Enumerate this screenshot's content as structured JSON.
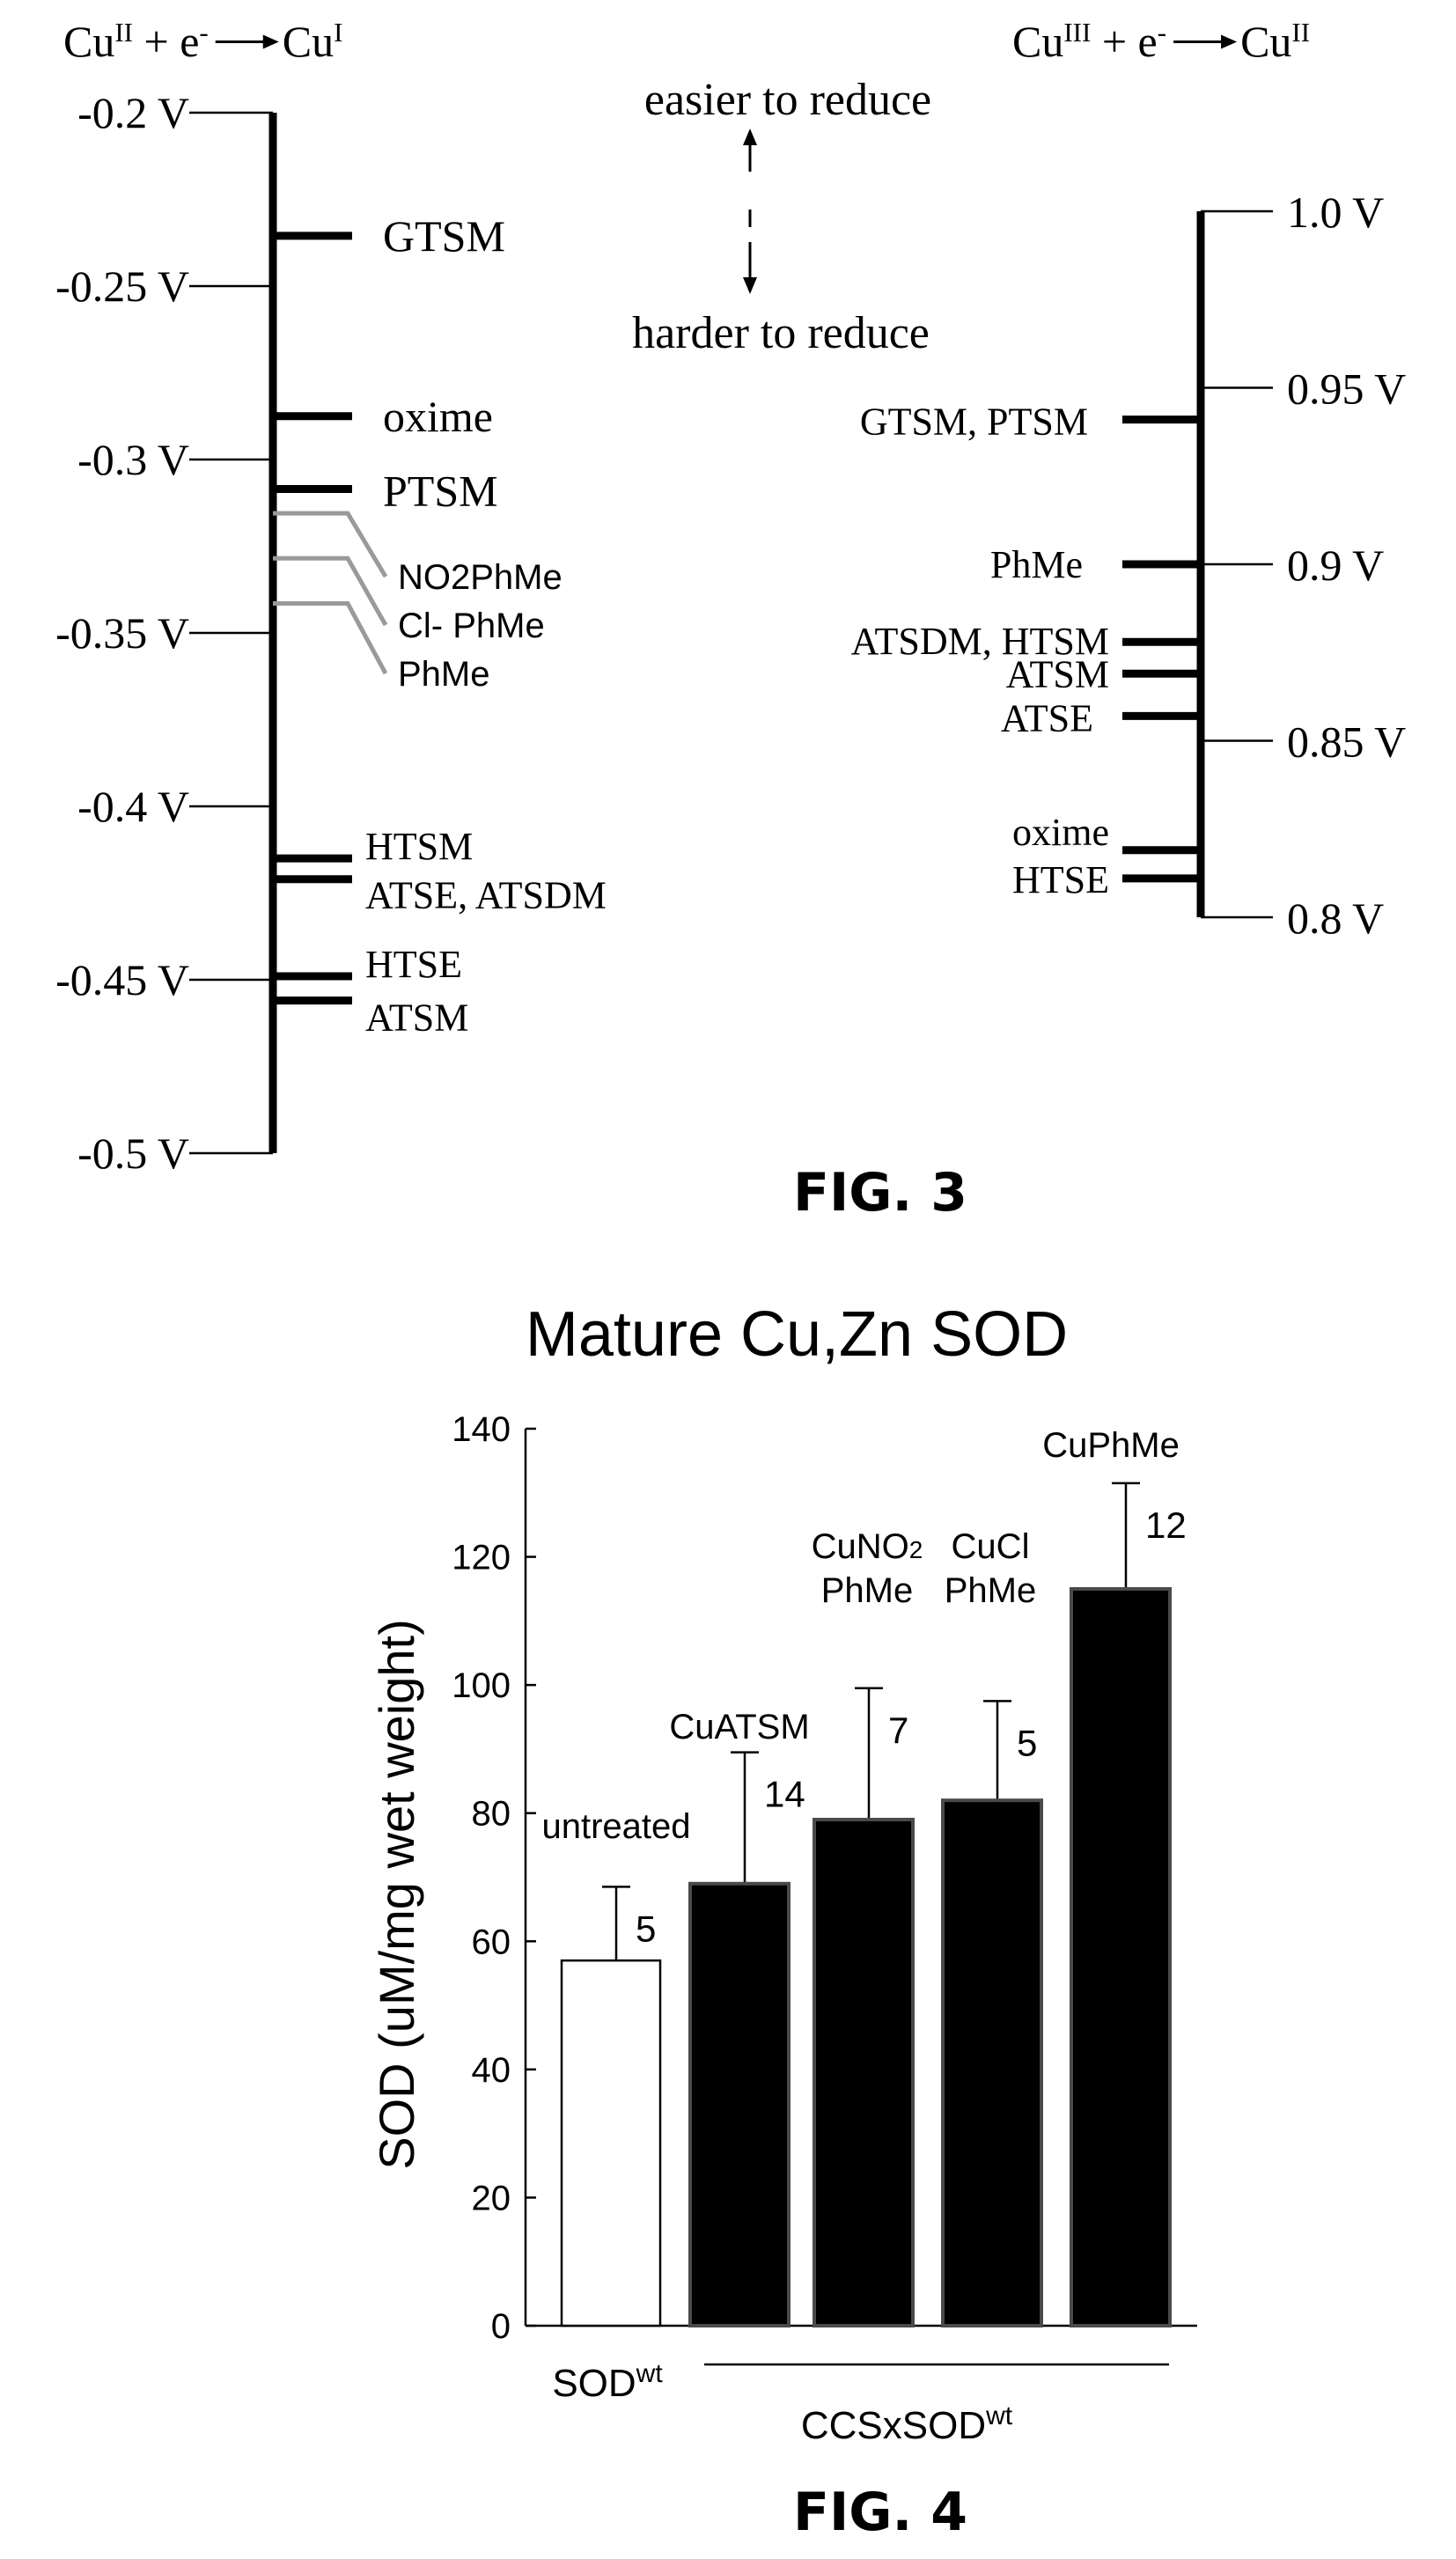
{
  "fig3": {
    "caption": "FIG. 3",
    "left_scale": {
      "reaction": {
        "base1": "Cu",
        "sup1": "II",
        "mid": " + e",
        "sup2": "-",
        "base2": "Cu",
        "sup3": "I"
      },
      "range": [
        -0.5,
        -0.2
      ],
      "ticks": [
        {
          "value": -0.2,
          "label": "-0.2 V"
        },
        {
          "value": -0.25,
          "label": "-0.25 V"
        },
        {
          "value": -0.3,
          "label": "-0.3 V"
        },
        {
          "value": -0.35,
          "label": "-0.35 V"
        },
        {
          "value": -0.4,
          "label": "-0.4 V"
        },
        {
          "value": -0.45,
          "label": "-0.45 V"
        },
        {
          "value": -0.5,
          "label": "-0.5 V"
        }
      ],
      "markers": [
        {
          "value": -0.2355,
          "label": "GTSM",
          "style": "black"
        },
        {
          "value": -0.2875,
          "label": "oxime",
          "style": "black"
        },
        {
          "value": -0.3085,
          "label": "PTSM",
          "style": "black"
        },
        {
          "value": -0.3155,
          "label": "NO2PhMe",
          "style": "gray"
        },
        {
          "value": -0.3285,
          "label": "Cl- PhMe",
          "style": "gray"
        },
        {
          "value": -0.3415,
          "label": "PhMe",
          "style": "gray"
        },
        {
          "value": -0.415,
          "label": "HTSM",
          "style": "black"
        },
        {
          "value": -0.421,
          "label": "ATSE, ATSDM",
          "style": "black"
        },
        {
          "value": -0.449,
          "label": "HTSE",
          "style": "black"
        },
        {
          "value": -0.456,
          "label": "ATSM",
          "style": "black"
        }
      ]
    },
    "legend": {
      "easier": "easier to reduce",
      "harder": "harder to reduce"
    },
    "right_scale": {
      "reaction": {
        "base1": "Cu",
        "sup1": "III",
        "mid": " + e",
        "sup2": "-",
        "base2": "Cu",
        "sup3": "II"
      },
      "range": [
        0.8,
        1.0
      ],
      "ticks": [
        {
          "value": 1.0,
          "label": "1.0 V"
        },
        {
          "value": 0.95,
          "label": "0.95 V"
        },
        {
          "value": 0.9,
          "label": "0.9 V"
        },
        {
          "value": 0.85,
          "label": "0.85 V"
        },
        {
          "value": 0.8,
          "label": "0.8 V"
        }
      ],
      "markers": [
        {
          "value": 0.941,
          "label": "GTSM, PTSM"
        },
        {
          "value": 0.9,
          "label": "PhMe"
        },
        {
          "value": 0.878,
          "label": "ATSDM, HTSM"
        },
        {
          "value": 0.869,
          "label": "ATSM"
        },
        {
          "value": 0.857,
          "label": "ATSE"
        },
        {
          "value": 0.819,
          "label": "oxime"
        },
        {
          "value": 0.811,
          "label": "HTSE"
        }
      ]
    }
  },
  "fig4": {
    "caption": "FIG. 4",
    "chart_data": {
      "type": "bar",
      "title": "Mature Cu,Zn SOD",
      "ylabel": "SOD (uM/mg wet weight)",
      "ylim": [
        0,
        140
      ],
      "yticks": [
        0,
        20,
        40,
        60,
        80,
        100,
        120,
        140
      ],
      "bars": [
        {
          "label_lines": [
            "untreated"
          ],
          "value": 57,
          "error": 11.5,
          "n": "5",
          "fill": "#ffffff"
        },
        {
          "label_lines": [
            "CuATSM"
          ],
          "value": 69,
          "error": 20.5,
          "n": "14",
          "fill": "#000000"
        },
        {
          "label_lines": [
            "CuNO2",
            "PhMe"
          ],
          "value": 79,
          "error": 20.5,
          "n": "7",
          "fill": "#000000"
        },
        {
          "label_lines": [
            "CuCl",
            "PhMe"
          ],
          "value": 82,
          "error": 15.5,
          "n": "5",
          "fill": "#000000"
        },
        {
          "label_lines": [
            "CuPhMe"
          ],
          "value": 115,
          "error": 16.5,
          "n": "12",
          "fill": "#000000"
        }
      ],
      "groups": [
        {
          "base": "SOD",
          "sup": "wt"
        },
        {
          "base": "CCSxSOD",
          "sup": "wt"
        }
      ]
    }
  }
}
